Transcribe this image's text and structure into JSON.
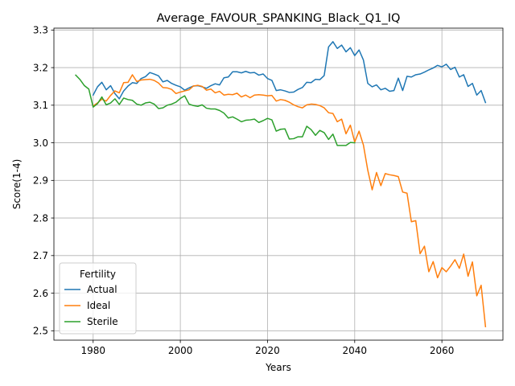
{
  "chart_data": {
    "type": "line",
    "title": "Average_FAVOUR_SPANKING_Black_Q1_IQ",
    "xlabel": "Years",
    "ylabel": "Score(1-4)",
    "xlim": [
      1971,
      2074
    ],
    "ylim": [
      2.475,
      3.305
    ],
    "xticks": [
      1980,
      2000,
      2020,
      2040,
      2060
    ],
    "yticks": [
      2.5,
      2.6,
      2.7,
      2.8,
      2.9,
      3.0,
      3.1,
      3.2,
      3.3
    ],
    "xtick_labels": [
      "1980",
      "2000",
      "2020",
      "2040",
      "2060"
    ],
    "ytick_labels": [
      "2.5",
      "2.6",
      "2.7",
      "2.8",
      "2.9",
      "3.0",
      "3.1",
      "3.2",
      "3.3"
    ],
    "grid": true,
    "legend": {
      "title": "Fertility",
      "position": "lower-left"
    },
    "series": [
      {
        "name": "Actual",
        "color": "#1f77b4",
        "x": [
          1980,
          1981,
          1982,
          1983,
          1984,
          1985,
          1986,
          1987,
          1988,
          1989,
          1990,
          1991,
          1992,
          1993,
          1994,
          1995,
          1996,
          1997,
          1998,
          1999,
          2000,
          2001,
          2002,
          2003,
          2004,
          2005,
          2006,
          2007,
          2008,
          2009,
          2010,
          2011,
          2012,
          2013,
          2014,
          2015,
          2016,
          2017,
          2018,
          2019,
          2020,
          2021,
          2022,
          2023,
          2024,
          2025,
          2026,
          2027,
          2028,
          2029,
          2030,
          2031,
          2032,
          2033,
          2034,
          2035,
          2036,
          2037,
          2038,
          2039,
          2040,
          2041,
          2042,
          2043,
          2044,
          2045,
          2046,
          2047,
          2048,
          2049,
          2050,
          2051,
          2052,
          2053,
          2054,
          2055,
          2056,
          2057,
          2058,
          2059,
          2060,
          2061,
          2062,
          2063,
          2064,
          2065,
          2066,
          2067,
          2068,
          2069,
          2070
        ],
        "y": [
          3.127,
          3.149,
          3.161,
          3.141,
          3.152,
          3.131,
          3.117,
          3.138,
          3.151,
          3.16,
          3.158,
          3.171,
          3.176,
          3.187,
          3.183,
          3.178,
          3.162,
          3.166,
          3.158,
          3.153,
          3.149,
          3.14,
          3.146,
          3.151,
          3.152,
          3.149,
          3.145,
          3.152,
          3.157,
          3.154,
          3.173,
          3.175,
          3.189,
          3.189,
          3.186,
          3.19,
          3.186,
          3.187,
          3.18,
          3.183,
          3.171,
          3.166,
          3.139,
          3.141,
          3.138,
          3.134,
          3.135,
          3.142,
          3.147,
          3.161,
          3.16,
          3.169,
          3.168,
          3.179,
          3.255,
          3.269,
          3.251,
          3.26,
          3.242,
          3.253,
          3.232,
          3.247,
          3.22,
          3.158,
          3.149,
          3.154,
          3.141,
          3.145,
          3.137,
          3.139,
          3.172,
          3.139,
          3.177,
          3.175,
          3.181,
          3.183,
          3.188,
          3.194,
          3.199,
          3.206,
          3.202,
          3.209,
          3.195,
          3.201,
          3.175,
          3.181,
          3.15,
          3.158,
          3.127,
          3.139,
          3.107
        ]
      },
      {
        "name": "Ideal",
        "color": "#ff7f0e",
        "x": [
          1980,
          1981,
          1982,
          1983,
          1984,
          1985,
          1986,
          1987,
          1988,
          1989,
          1990,
          1991,
          1992,
          1993,
          1994,
          1995,
          1996,
          1997,
          1998,
          1999,
          2000,
          2001,
          2002,
          2003,
          2004,
          2005,
          2006,
          2007,
          2008,
          2009,
          2010,
          2011,
          2012,
          2013,
          2014,
          2015,
          2016,
          2017,
          2018,
          2019,
          2020,
          2021,
          2022,
          2023,
          2024,
          2025,
          2026,
          2027,
          2028,
          2029,
          2030,
          2031,
          2032,
          2033,
          2034,
          2035,
          2036,
          2037,
          2038,
          2039,
          2040,
          2041,
          2042,
          2043,
          2044,
          2045,
          2046,
          2047,
          2048,
          2049,
          2050,
          2051,
          2052,
          2053,
          2054,
          2055,
          2056,
          2057,
          2058,
          2059,
          2060,
          2061,
          2062,
          2063,
          2064,
          2065,
          2066,
          2067,
          2068,
          2069,
          2070
        ],
        "y": [
          3.098,
          3.106,
          3.116,
          3.111,
          3.126,
          3.138,
          3.133,
          3.16,
          3.161,
          3.181,
          3.163,
          3.167,
          3.168,
          3.169,
          3.166,
          3.159,
          3.147,
          3.146,
          3.142,
          3.131,
          3.135,
          3.138,
          3.141,
          3.151,
          3.153,
          3.15,
          3.14,
          3.143,
          3.133,
          3.137,
          3.127,
          3.129,
          3.128,
          3.132,
          3.122,
          3.127,
          3.12,
          3.127,
          3.128,
          3.127,
          3.125,
          3.126,
          3.111,
          3.115,
          3.113,
          3.108,
          3.101,
          3.096,
          3.093,
          3.101,
          3.103,
          3.102,
          3.099,
          3.093,
          3.08,
          3.078,
          3.056,
          3.063,
          3.024,
          3.047,
          3.002,
          3.031,
          2.994,
          2.927,
          2.875,
          2.921,
          2.886,
          2.918,
          2.915,
          2.913,
          2.91,
          2.869,
          2.866,
          2.79,
          2.793,
          2.705,
          2.725,
          2.657,
          2.684,
          2.641,
          2.668,
          2.657,
          2.672,
          2.689,
          2.666,
          2.704,
          2.645,
          2.683,
          2.593,
          2.621,
          2.511
        ]
      },
      {
        "name": "Sterile",
        "color": "#2ca02c",
        "x": [
          1976,
          1977,
          1978,
          1979,
          1980,
          1981,
          1982,
          1983,
          1984,
          1985,
          1986,
          1987,
          1988,
          1989,
          1990,
          1991,
          1992,
          1993,
          1994,
          1995,
          1996,
          1997,
          1998,
          1999,
          2000,
          2001,
          2002,
          2003,
          2004,
          2005,
          2006,
          2007,
          2008,
          2009,
          2010,
          2011,
          2012,
          2013,
          2014,
          2015,
          2016,
          2017,
          2018,
          2019,
          2020,
          2021,
          2022,
          2023,
          2024,
          2025,
          2026,
          2027,
          2028,
          2029,
          2030,
          2031,
          2032,
          2033,
          2034,
          2035,
          2036,
          2037,
          2038,
          2039,
          2040
        ],
        "y": [
          3.18,
          3.168,
          3.152,
          3.143,
          3.095,
          3.104,
          3.122,
          3.101,
          3.106,
          3.117,
          3.102,
          3.119,
          3.115,
          3.113,
          3.103,
          3.1,
          3.106,
          3.108,
          3.103,
          3.091,
          3.093,
          3.1,
          3.103,
          3.108,
          3.118,
          3.125,
          3.103,
          3.099,
          3.097,
          3.101,
          3.092,
          3.09,
          3.09,
          3.086,
          3.079,
          3.066,
          3.069,
          3.063,
          3.056,
          3.06,
          3.061,
          3.063,
          3.054,
          3.059,
          3.065,
          3.061,
          3.031,
          3.036,
          3.037,
          3.01,
          3.011,
          3.016,
          3.016,
          3.044,
          3.035,
          3.02,
          3.033,
          3.027,
          3.009,
          3.023,
          2.993,
          2.993,
          2.993,
          3.001,
          3.0
        ]
      }
    ]
  }
}
